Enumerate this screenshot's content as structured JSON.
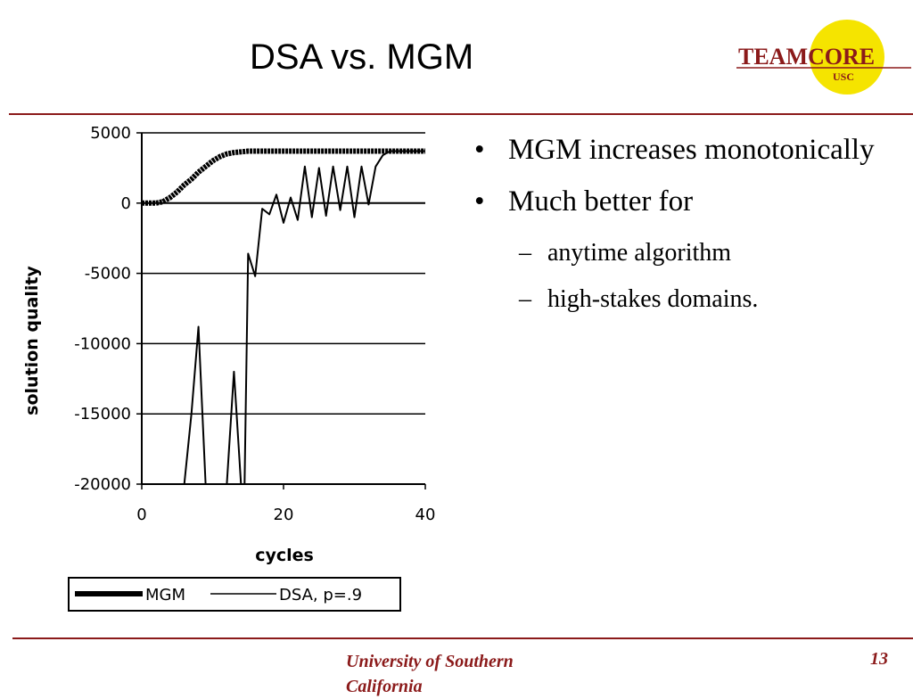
{
  "slide": {
    "title": "DSA vs. MGM",
    "logo_text": "TEAMCORE",
    "logo_subtext": "USC",
    "footer": "University of Southern California",
    "page_number": "13",
    "colors": {
      "rule": "#8b1a1a",
      "footer": "#8b1a1a",
      "logo_circle": "#f5e400"
    }
  },
  "bullets": [
    {
      "text": "MGM increases monotonically",
      "subs": []
    },
    {
      "text": "Much better for",
      "subs": [
        "anytime algorithm",
        "high-stakes domains."
      ]
    }
  ],
  "chart_data": {
    "type": "line",
    "xlabel": "cycles",
    "ylabel": "solution quality",
    "xlim": [
      0,
      40
    ],
    "ylim": [
      -20000,
      5000
    ],
    "xticks": [
      "0",
      "20",
      "40"
    ],
    "yticks": [
      "5000",
      "0",
      "-5000",
      "-10000",
      "-15000",
      "-20000"
    ],
    "grid": "horizontal",
    "legend_position": "bottom",
    "series": [
      {
        "name": "MGM",
        "color": "#000000",
        "style": "thick",
        "x": [
          0,
          1,
          2,
          3,
          4,
          5,
          6,
          7,
          8,
          9,
          10,
          11,
          12,
          13,
          14,
          15,
          16,
          17,
          18,
          19,
          20,
          21,
          22,
          23,
          24,
          25,
          26,
          27,
          28,
          29,
          30,
          31,
          32,
          33,
          34,
          35,
          36,
          37,
          38,
          39,
          40
        ],
        "y": [
          0,
          0,
          0,
          100,
          400,
          800,
          1300,
          1700,
          2200,
          2600,
          3000,
          3300,
          3500,
          3600,
          3650,
          3700,
          3700,
          3700,
          3700,
          3700,
          3700,
          3700,
          3700,
          3700,
          3700,
          3700,
          3700,
          3700,
          3700,
          3700,
          3700,
          3700,
          3700,
          3700,
          3700,
          3700,
          3700,
          3700,
          3700,
          3700,
          3700
        ]
      },
      {
        "name": "DSA, p=.9",
        "color": "#000000",
        "style": "thin",
        "x": [
          0,
          6,
          7,
          8,
          9,
          12,
          13,
          14,
          14.5,
          15,
          16,
          17,
          18,
          19,
          20,
          21,
          22,
          23,
          24,
          25,
          26,
          27,
          28,
          29,
          30,
          31,
          32,
          33,
          34,
          35,
          36,
          37,
          38,
          39,
          40
        ],
        "y": [
          -20000,
          -20000,
          -15000,
          -8800,
          -20000,
          -20000,
          -12000,
          -20000,
          -20000,
          -3600,
          -5200,
          -400,
          -800,
          600,
          -1400,
          400,
          -1200,
          2600,
          -1000,
          2500,
          -900,
          2600,
          -500,
          2600,
          -1000,
          2600,
          -100,
          2600,
          3400,
          3700,
          3700,
          3700,
          3700,
          3700,
          3700
        ]
      }
    ]
  }
}
